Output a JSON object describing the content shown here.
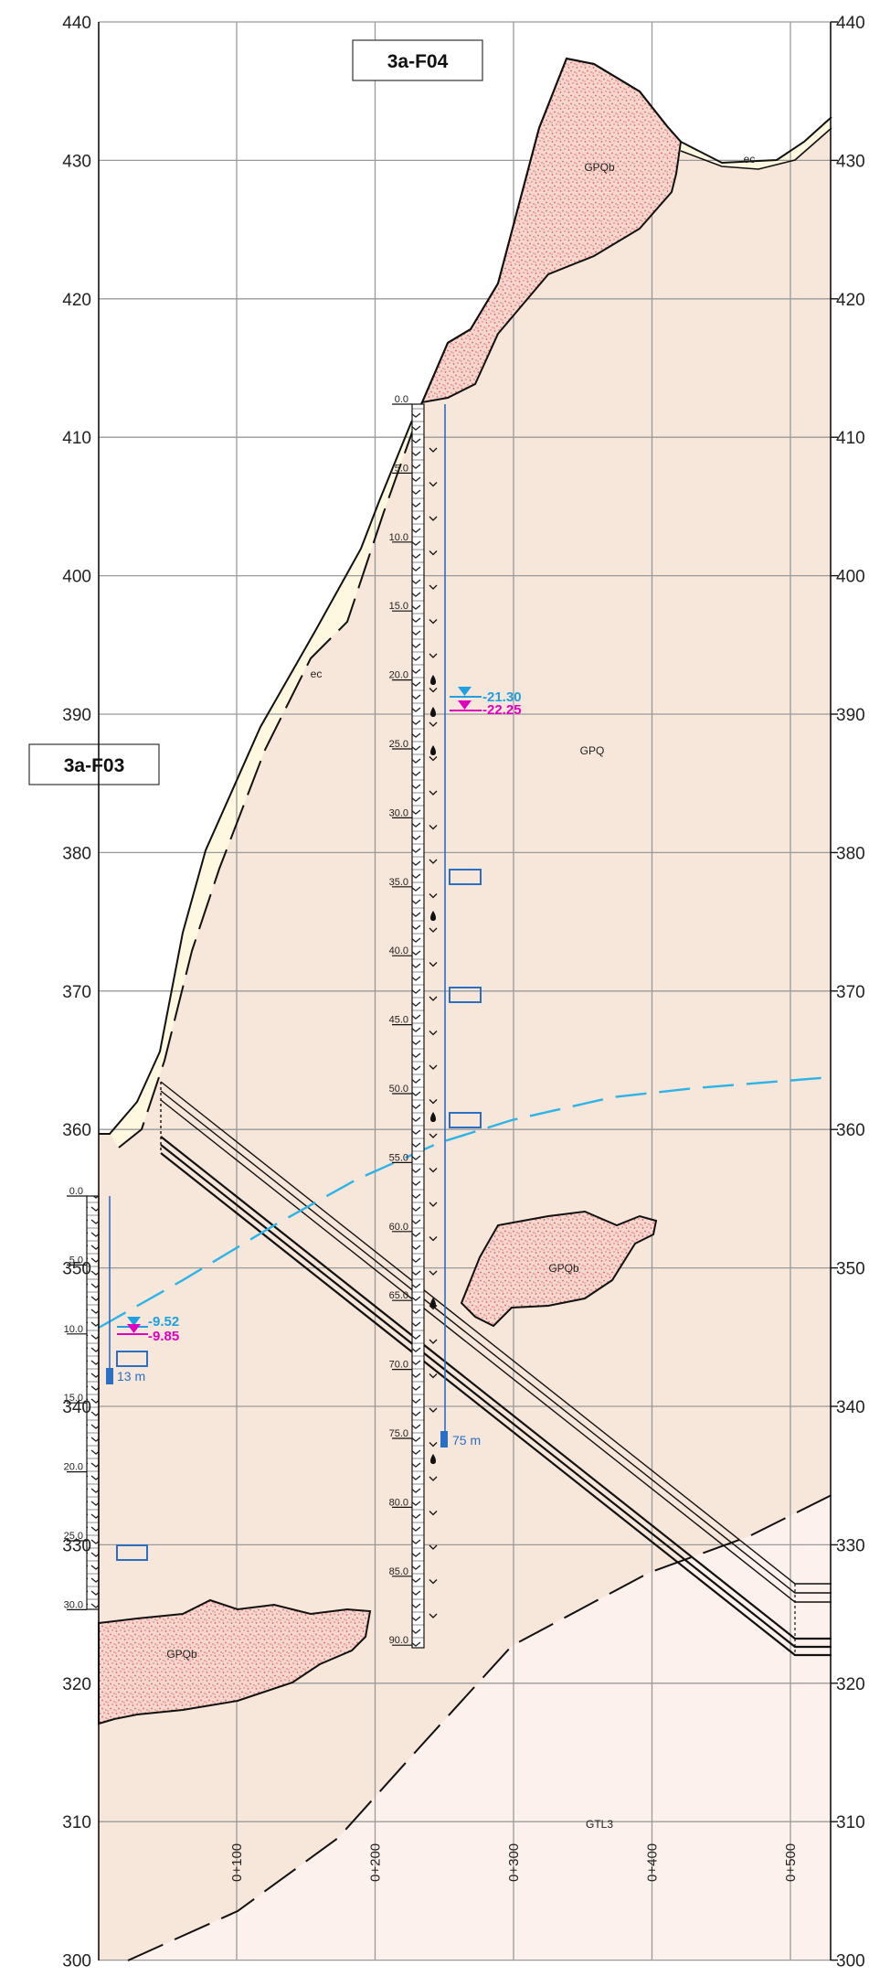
{
  "section": {
    "elevation_labels": [
      "440",
      "430",
      "420",
      "410",
      "400",
      "390",
      "380",
      "370",
      "360",
      "350",
      "340",
      "330",
      "320",
      "310",
      "300"
    ],
    "station_labels": [
      "0+100",
      "0+200",
      "0+300",
      "0+400",
      "0+500"
    ],
    "units": {
      "gpqb": "GPQb",
      "ec": "ec",
      "gpq": "GPQ",
      "gtl3": "GTL3"
    }
  },
  "boreholes": [
    {
      "id": "3a-F04",
      "depth_labels": [
        "0.0",
        "5.0",
        "10.0",
        "15.0",
        "20.0",
        "25.0",
        "30.0",
        "35.0",
        "40.0",
        "45.0",
        "50.0",
        "55.0",
        "60.0",
        "65.0",
        "70.0",
        "75.0",
        "80.0",
        "85.0",
        "90.0"
      ],
      "water_level_1": "-21.30",
      "water_level_2": "-22.25",
      "piezometer_depth": "75 m"
    },
    {
      "id": "3a-F03",
      "depth_labels": [
        "0.0",
        "5.0",
        "10.0",
        "15.0",
        "20.0",
        "25.0",
        "30.0"
      ],
      "water_level_1": "-9.52",
      "water_level_2": "-9.85",
      "piezometer_depth": "13 m"
    }
  ],
  "colors": {
    "background_rock": "#f7e6da",
    "lower_unit": "#fcf1ec",
    "gpqb_fill": "#f5d7cf",
    "gpqb_dots": "#e05a5a",
    "colluvium": "#fdf8df",
    "grid": "#9a9a9a",
    "water_blue": "#1fa0e0",
    "water_magenta": "#e000c0",
    "piezo_blue": "#2a6fc4",
    "water_table": "#2ab4e8"
  }
}
